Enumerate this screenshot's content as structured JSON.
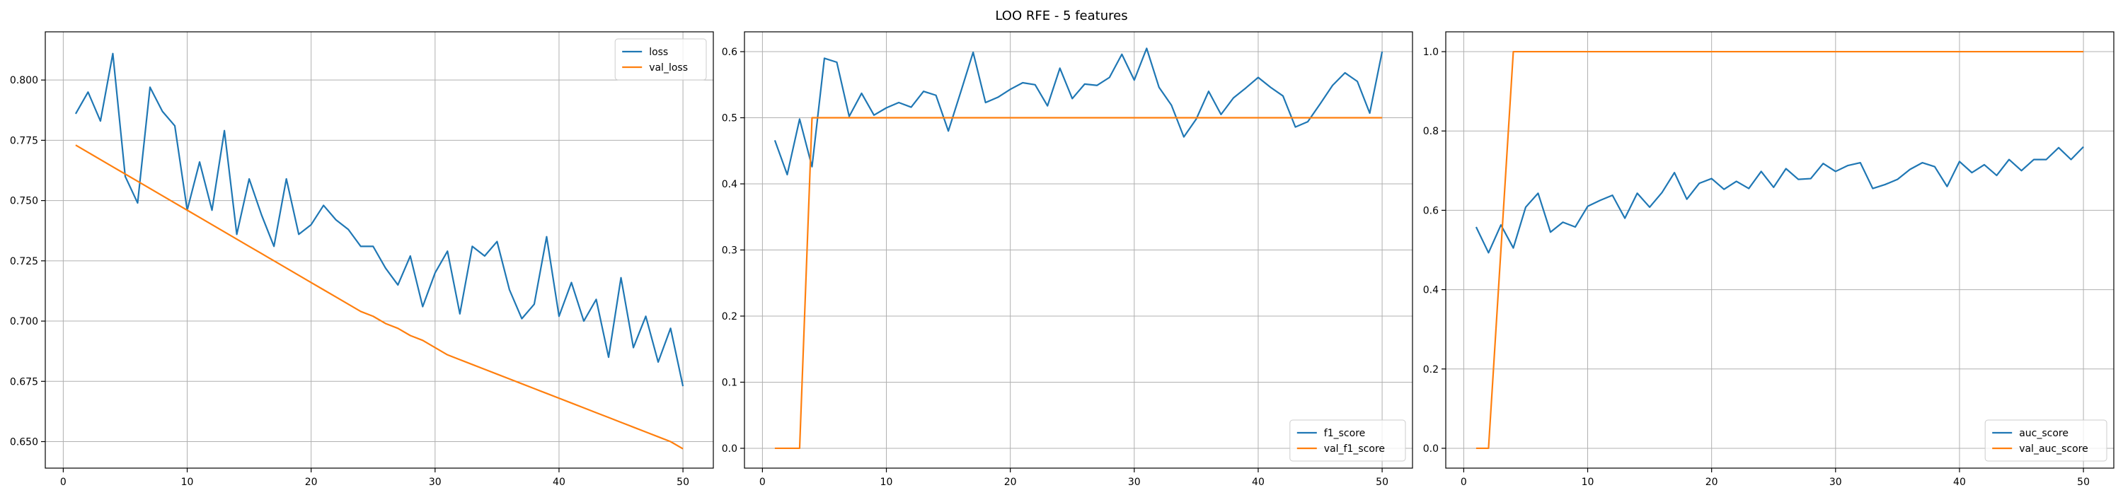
{
  "figure": {
    "title": "LOO RFE - 5 features"
  },
  "colors": {
    "series1": "#1f77b4",
    "series2": "#ff7f0e",
    "grid": "#b0b0b0",
    "axes": "#000000"
  },
  "chart_data": [
    {
      "type": "line",
      "title": "",
      "xlabel": "",
      "ylabel": "",
      "xlim": [
        -1.45,
        52.45
      ],
      "ylim": [
        0.639,
        0.82
      ],
      "xticks": [
        0,
        10,
        20,
        30,
        40,
        50
      ],
      "yticks": [
        0.65,
        0.675,
        0.7,
        0.725,
        0.75,
        0.775,
        0.8
      ],
      "ytick_labels": [
        "0.650",
        "0.675",
        "0.700",
        "0.725",
        "0.750",
        "0.775",
        "0.800"
      ],
      "grid": true,
      "legend": "top-right",
      "series": [
        {
          "name": "loss",
          "x": [
            1,
            2,
            3,
            4,
            5,
            6,
            7,
            8,
            9,
            10,
            11,
            12,
            13,
            14,
            15,
            16,
            17,
            18,
            19,
            20,
            21,
            22,
            23,
            24,
            25,
            26,
            27,
            28,
            29,
            30,
            31,
            32,
            33,
            34,
            35,
            36,
            37,
            38,
            39,
            40,
            41,
            42,
            43,
            44,
            45,
            46,
            47,
            48,
            49,
            50
          ],
          "values": [
            0.786,
            0.795,
            0.783,
            0.811,
            0.76,
            0.749,
            0.797,
            0.787,
            0.781,
            0.746,
            0.766,
            0.746,
            0.779,
            0.736,
            0.759,
            0.744,
            0.731,
            0.759,
            0.736,
            0.74,
            0.748,
            0.742,
            0.738,
            0.731,
            0.731,
            0.722,
            0.715,
            0.727,
            0.706,
            0.72,
            0.729,
            0.703,
            0.731,
            0.727,
            0.733,
            0.713,
            0.701,
            0.707,
            0.735,
            0.702,
            0.716,
            0.7,
            0.709,
            0.685,
            0.718,
            0.689,
            0.702,
            0.683,
            0.697,
            0.673
          ]
        },
        {
          "name": "val_loss",
          "x": [
            1,
            2,
            3,
            4,
            5,
            6,
            7,
            8,
            9,
            10,
            11,
            12,
            13,
            14,
            15,
            16,
            17,
            18,
            19,
            20,
            21,
            22,
            23,
            24,
            25,
            26,
            27,
            28,
            29,
            30,
            31,
            32,
            33,
            34,
            35,
            36,
            37,
            38,
            39,
            40,
            41,
            42,
            43,
            44,
            45,
            46,
            47,
            48,
            49,
            50
          ],
          "values": [
            0.773,
            0.77,
            0.767,
            0.764,
            0.761,
            0.758,
            0.755,
            0.752,
            0.749,
            0.746,
            0.743,
            0.74,
            0.737,
            0.734,
            0.731,
            0.728,
            0.725,
            0.722,
            0.719,
            0.716,
            0.713,
            0.71,
            0.707,
            0.704,
            0.702,
            0.699,
            0.697,
            0.694,
            0.692,
            0.689,
            0.686,
            0.684,
            0.682,
            0.68,
            0.678,
            0.676,
            0.674,
            0.672,
            0.67,
            0.668,
            0.666,
            0.664,
            0.662,
            0.66,
            0.658,
            0.656,
            0.654,
            0.652,
            0.65,
            0.647
          ]
        }
      ]
    },
    {
      "type": "line",
      "title": "",
      "xlabel": "",
      "ylabel": "",
      "xlim": [
        -1.45,
        52.45
      ],
      "ylim": [
        -0.03,
        0.63
      ],
      "xticks": [
        0,
        10,
        20,
        30,
        40,
        50
      ],
      "yticks": [
        0.0,
        0.1,
        0.2,
        0.3,
        0.4,
        0.5,
        0.6
      ],
      "ytick_labels": [
        "0.0",
        "0.1",
        "0.2",
        "0.3",
        "0.4",
        "0.5",
        "0.6"
      ],
      "grid": true,
      "legend": "bottom-right",
      "series": [
        {
          "name": "f1_score",
          "x": [
            1,
            2,
            3,
            4,
            5,
            6,
            7,
            8,
            9,
            10,
            11,
            12,
            13,
            14,
            15,
            16,
            17,
            18,
            19,
            20,
            21,
            22,
            23,
            24,
            25,
            26,
            27,
            28,
            29,
            30,
            31,
            32,
            33,
            34,
            35,
            36,
            37,
            38,
            39,
            40,
            41,
            42,
            43,
            44,
            45,
            46,
            47,
            48,
            49,
            50
          ],
          "values": [
            0.466,
            0.414,
            0.498,
            0.426,
            0.59,
            0.584,
            0.502,
            0.537,
            0.504,
            0.515,
            0.523,
            0.516,
            0.54,
            0.534,
            0.48,
            0.539,
            0.599,
            0.523,
            0.531,
            0.543,
            0.553,
            0.55,
            0.518,
            0.575,
            0.529,
            0.551,
            0.549,
            0.561,
            0.596,
            0.557,
            0.605,
            0.546,
            0.519,
            0.471,
            0.498,
            0.54,
            0.505,
            0.53,
            0.545,
            0.561,
            0.546,
            0.533,
            0.486,
            0.494,
            0.521,
            0.549,
            0.568,
            0.555,
            0.507,
            0.6
          ]
        },
        {
          "name": "val_f1_score",
          "x": [
            1,
            2,
            3,
            4,
            5,
            6,
            7,
            8,
            9,
            10,
            11,
            12,
            13,
            14,
            15,
            16,
            17,
            18,
            19,
            20,
            21,
            22,
            23,
            24,
            25,
            26,
            27,
            28,
            29,
            30,
            31,
            32,
            33,
            34,
            35,
            36,
            37,
            38,
            39,
            40,
            41,
            42,
            43,
            44,
            45,
            46,
            47,
            48,
            49,
            50
          ],
          "values": [
            0,
            0,
            0,
            0.5,
            0.5,
            0.5,
            0.5,
            0.5,
            0.5,
            0.5,
            0.5,
            0.5,
            0.5,
            0.5,
            0.5,
            0.5,
            0.5,
            0.5,
            0.5,
            0.5,
            0.5,
            0.5,
            0.5,
            0.5,
            0.5,
            0.5,
            0.5,
            0.5,
            0.5,
            0.5,
            0.5,
            0.5,
            0.5,
            0.5,
            0.5,
            0.5,
            0.5,
            0.5,
            0.5,
            0.5,
            0.5,
            0.5,
            0.5,
            0.5,
            0.5,
            0.5,
            0.5,
            0.5,
            0.5,
            0.5
          ]
        }
      ]
    },
    {
      "type": "line",
      "title": "",
      "xlabel": "",
      "ylabel": "",
      "xlim": [
        -1.45,
        52.45
      ],
      "ylim": [
        -0.05,
        1.05
      ],
      "xticks": [
        0,
        10,
        20,
        30,
        40,
        50
      ],
      "yticks": [
        0.0,
        0.2,
        0.4,
        0.6,
        0.8,
        1.0
      ],
      "ytick_labels": [
        "0.0",
        "0.2",
        "0.4",
        "0.6",
        "0.8",
        "1.0"
      ],
      "grid": true,
      "legend": "bottom-right",
      "series": [
        {
          "name": "auc_score",
          "x": [
            1,
            2,
            3,
            4,
            5,
            6,
            7,
            8,
            9,
            10,
            11,
            12,
            13,
            14,
            15,
            16,
            17,
            18,
            19,
            20,
            21,
            22,
            23,
            24,
            25,
            26,
            27,
            28,
            29,
            30,
            31,
            32,
            33,
            34,
            35,
            36,
            37,
            38,
            39,
            40,
            41,
            42,
            43,
            44,
            45,
            46,
            47,
            48,
            49,
            50
          ],
          "values": [
            0.558,
            0.493,
            0.563,
            0.505,
            0.608,
            0.643,
            0.545,
            0.57,
            0.558,
            0.61,
            0.625,
            0.638,
            0.58,
            0.643,
            0.608,
            0.645,
            0.695,
            0.628,
            0.668,
            0.68,
            0.653,
            0.673,
            0.655,
            0.698,
            0.658,
            0.705,
            0.678,
            0.68,
            0.718,
            0.698,
            0.713,
            0.72,
            0.655,
            0.665,
            0.678,
            0.703,
            0.72,
            0.71,
            0.66,
            0.723,
            0.695,
            0.715,
            0.688,
            0.728,
            0.7,
            0.728,
            0.728,
            0.758,
            0.728,
            0.76
          ]
        },
        {
          "name": "val_auc_score",
          "x": [
            1,
            2,
            3,
            4,
            5,
            6,
            7,
            8,
            9,
            10,
            11,
            12,
            13,
            14,
            15,
            16,
            17,
            18,
            19,
            20,
            21,
            22,
            23,
            24,
            25,
            26,
            27,
            28,
            29,
            30,
            31,
            32,
            33,
            34,
            35,
            36,
            37,
            38,
            39,
            40,
            41,
            42,
            43,
            44,
            45,
            46,
            47,
            48,
            49,
            50
          ],
          "values": [
            0,
            0,
            0.5,
            1,
            1,
            1,
            1,
            1,
            1,
            1,
            1,
            1,
            1,
            1,
            1,
            1,
            1,
            1,
            1,
            1,
            1,
            1,
            1,
            1,
            1,
            1,
            1,
            1,
            1,
            1,
            1,
            1,
            1,
            1,
            1,
            1,
            1,
            1,
            1,
            1,
            1,
            1,
            1,
            1,
            1,
            1,
            1,
            1,
            1,
            1
          ]
        }
      ]
    }
  ]
}
